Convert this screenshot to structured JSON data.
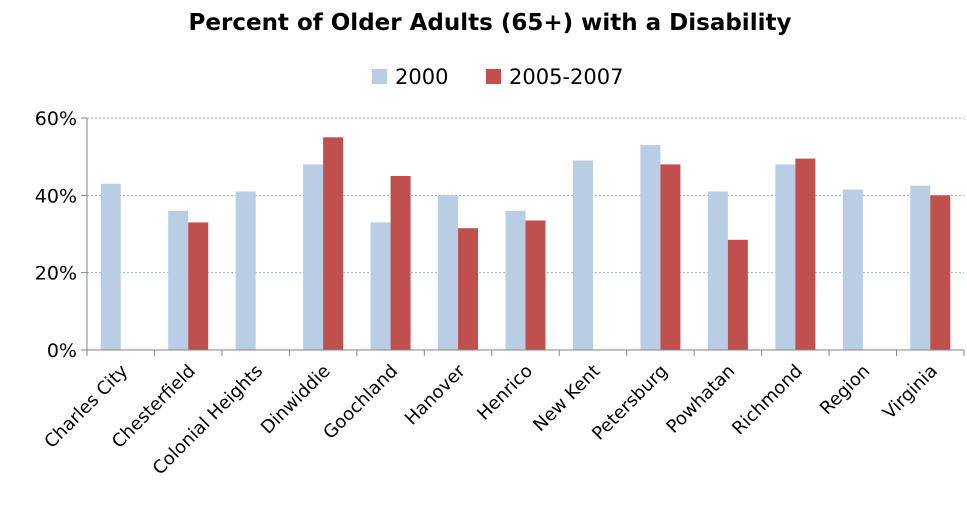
{
  "chart_data": {
    "type": "bar",
    "title": "Percent of Older Adults (65+) with a Disability",
    "categories": [
      "Charles City",
      "Chesterfield",
      "Colonial Heights",
      "Dinwiddie",
      "Goochland",
      "Hanover",
      "Henrico",
      "New Kent",
      "Petersburg",
      "Powhatan",
      "Richmond",
      "Region",
      "Virginia"
    ],
    "series": [
      {
        "name": "2000",
        "color": "#b9cde5",
        "values": [
          43,
          36,
          41,
          48,
          33,
          40,
          36,
          49,
          53,
          41,
          48,
          41.5,
          42.5
        ]
      },
      {
        "name": "2005-2007",
        "color": "#c0504d",
        "values": [
          null,
          33,
          null,
          55,
          45,
          31.5,
          33.5,
          null,
          48,
          28.5,
          49.5,
          null,
          40
        ]
      }
    ],
    "ylim": [
      0,
      60
    ],
    "yticks": [
      0,
      20,
      40,
      60
    ],
    "ytick_labels": [
      "0%",
      "20%",
      "40%",
      "60%"
    ],
    "grid": true,
    "legend_position": "top"
  }
}
